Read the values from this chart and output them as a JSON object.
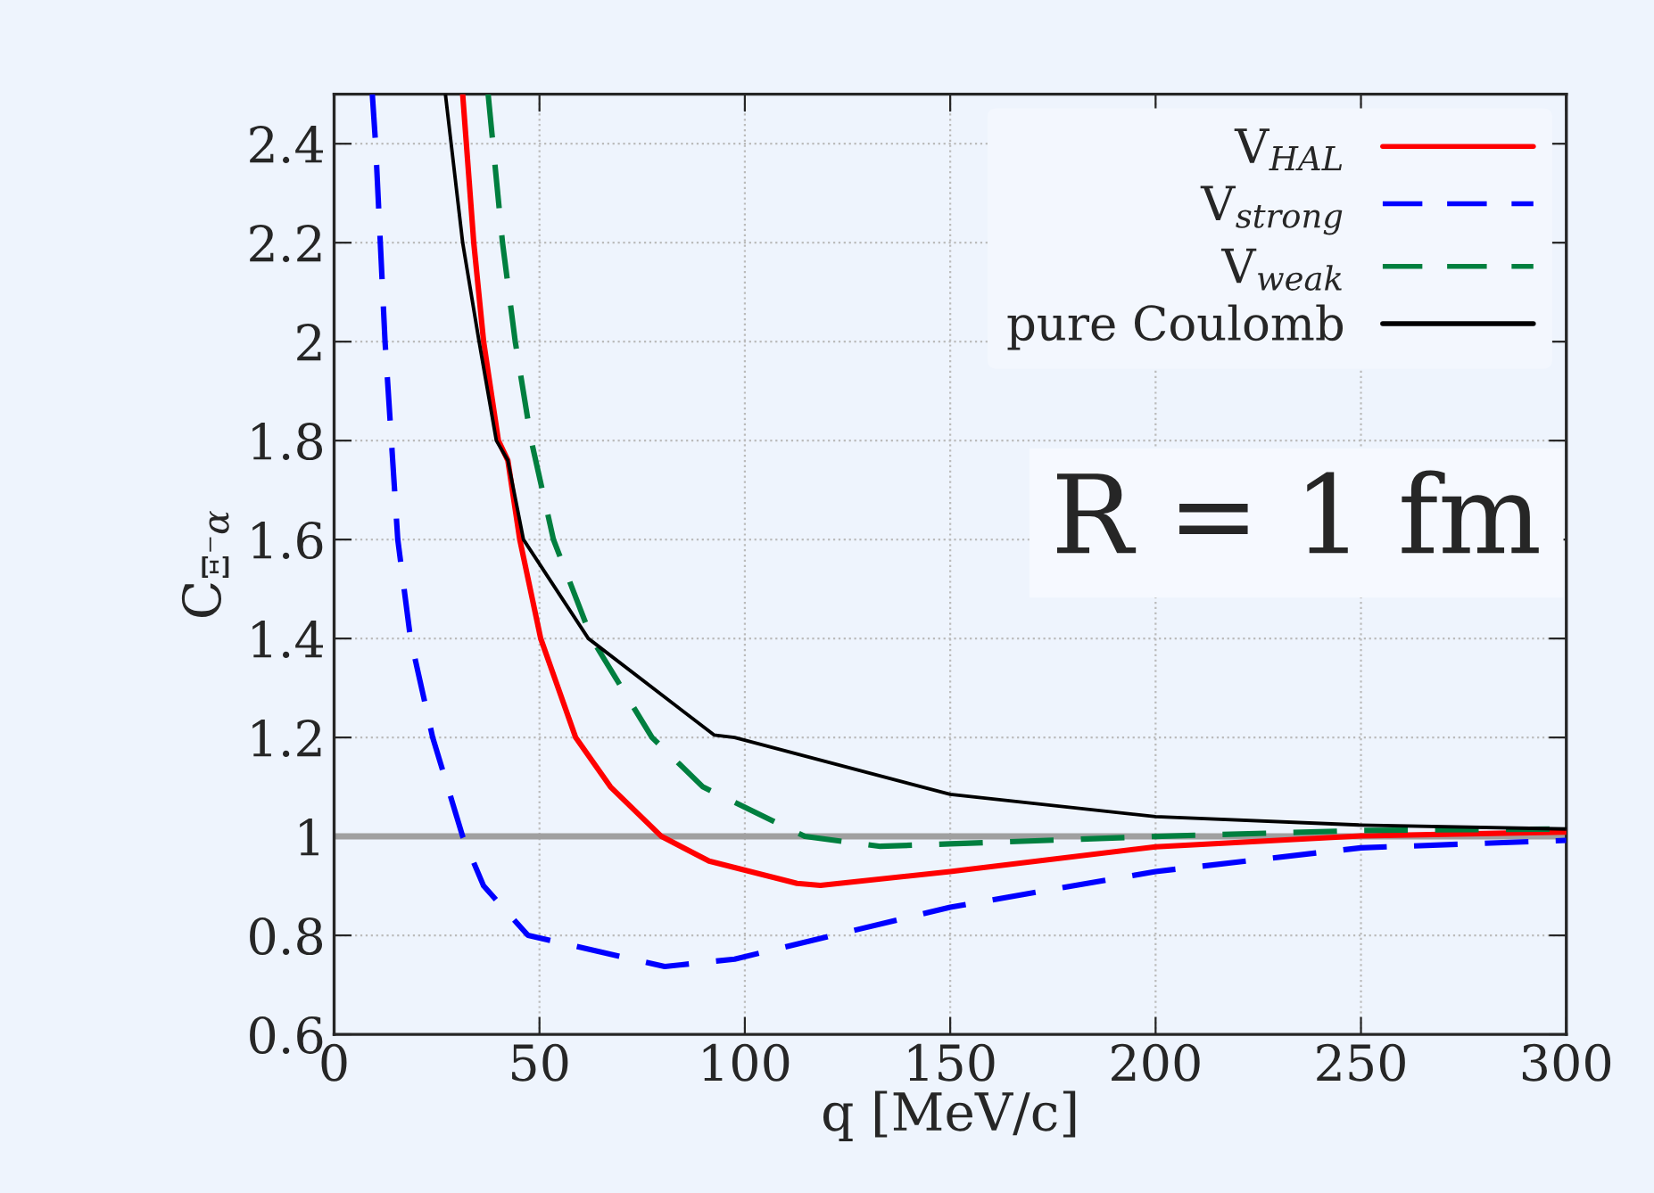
{
  "chart_data": {
    "type": "line",
    "xlabel": "q [MeV/c]",
    "ylabel": "C$_{Ξ⁻α}$",
    "xlim": [
      0,
      300
    ],
    "xticks": [
      0,
      50,
      100,
      150,
      200,
      250,
      300
    ],
    "ylim": [
      0.6,
      2.5
    ],
    "yticks": [
      0.6,
      0.8,
      1,
      1.2,
      1.4,
      1.6,
      1.8,
      2,
      2.2,
      2.4
    ],
    "grid": true,
    "legend": "top right",
    "ref_lines": [
      {
        "axis": "y",
        "value": 1,
        "color": "#a0a0a0",
        "line_style": "solid"
      }
    ],
    "annotations": [
      "R = 1 fm"
    ],
    "series": [
      {
        "name": "V$_{HAL}$",
        "color": "#ff0000",
        "line_style": "solid",
        "x": [
          31.3,
          34,
          36.4,
          40,
          42.3,
          45.2,
          50.3,
          58.8,
          67.3,
          79.7,
          91.3,
          112.7,
          118.4,
          150,
          200,
          250,
          300
        ],
        "values": [
          2.5,
          2.2,
          2.0,
          1.8,
          1.76,
          1.6,
          1.4,
          1.2,
          1.1,
          1.0,
          0.95,
          0.905,
          0.901,
          0.929,
          0.979,
          1.001,
          1.009
        ]
      },
      {
        "name": "V$_{strong}$",
        "color": "#0000ff",
        "line_style": "dashed",
        "x": [
          9.3,
          10.1,
          12.4,
          15.5,
          18.6,
          24,
          31.3,
          36.4,
          47.2,
          80.5,
          97.5,
          150,
          200,
          250,
          300
        ],
        "values": [
          2.5,
          2.4,
          2.0,
          1.6,
          1.4,
          1.2,
          1.0,
          0.9,
          0.8,
          0.737,
          0.752,
          0.857,
          0.929,
          0.977,
          0.992
        ]
      },
      {
        "name": "V$_{weak}$",
        "color": "#007f3f",
        "line_style": "dashed",
        "x": [
          37.5,
          41,
          44.1,
          48,
          53.4,
          62.7,
          77.4,
          89.8,
          114.6,
          133,
          150,
          200,
          250,
          300
        ],
        "values": [
          2.5,
          2.2,
          2.0,
          1.8,
          1.6,
          1.4,
          1.2,
          1.1,
          1.0,
          0.98,
          0.985,
          1.0,
          1.012,
          1.015
        ]
      },
      {
        "name": "pure Coulomb",
        "color": "#000000",
        "line_style": "solid",
        "x": [
          27.1,
          31.3,
          35.3,
          39.5,
          42.3,
          46.1,
          61.9,
          92.5,
          97.5,
          150,
          200,
          249.5,
          300
        ],
        "values": [
          2.5,
          2.2,
          2.0,
          1.8,
          1.76,
          1.6,
          1.4,
          1.205,
          1.2,
          1.085,
          1.04,
          1.023,
          1.015
        ]
      }
    ]
  }
}
